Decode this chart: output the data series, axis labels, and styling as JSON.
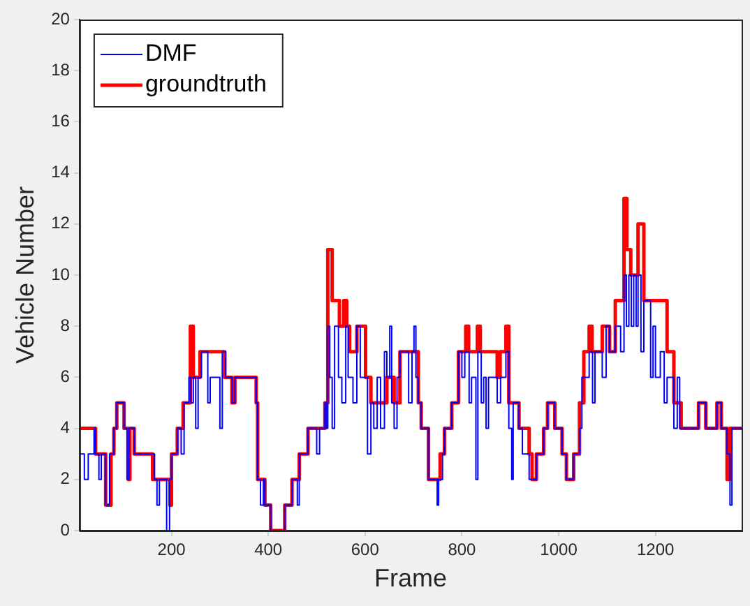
{
  "chart_data": {
    "type": "step",
    "xlabel": "Frame",
    "ylabel": "Vehicle Number",
    "xlim": [
      10,
      1378
    ],
    "xticks": [
      200,
      400,
      600,
      800,
      1000,
      1200
    ],
    "ylim": [
      0,
      20
    ],
    "yticks": [
      0,
      2,
      4,
      6,
      8,
      10,
      12,
      14,
      16,
      18,
      20
    ],
    "grid": false,
    "legend": "top left",
    "line_style": "solid",
    "marker": "none",
    "series": [
      {
        "name": "DMF",
        "color": "#0000ff",
        "x": [
          10,
          20,
          28,
          40,
          43,
          50,
          55,
          64,
          72,
          81,
          87,
          102,
          108,
          112,
          123,
          165,
          170,
          175,
          190,
          196,
          200,
          212,
          220,
          226,
          236,
          240,
          245,
          250,
          255,
          262,
          275,
          280,
          300,
          305,
          312,
          325,
          331,
          375,
          378,
          384,
          390,
          393,
          405,
          434,
          449,
          460,
          464,
          482,
          500,
          506,
          517,
          520,
          523,
          527,
          532,
          537,
          545,
          552,
          560,
          565,
          575,
          583,
          590,
          601,
          605,
          612,
          618,
          625,
          632,
          640,
          645,
          651,
          655,
          660,
          666,
          672,
          690,
          697,
          701,
          705,
          710,
          716,
          731,
          749,
          752,
          760,
          764,
          779,
          793,
          800,
          806,
          815,
          820,
          829,
          833,
          840,
          845,
          850,
          855,
          873,
          880,
          891,
          897,
          903,
          906,
          918,
          925,
          939,
          954,
          969,
          977,
          992,
          1007,
          1016,
          1031,
          1043,
          1048,
          1063,
          1070,
          1075,
          1090,
          1098,
          1105,
          1117,
          1128,
          1135,
          1140,
          1145,
          1150,
          1155,
          1160,
          1164,
          1170,
          1176,
          1190,
          1195,
          1200,
          1210,
          1218,
          1224,
          1238,
          1245,
          1250,
          1289,
          1304,
          1327,
          1336,
          1348,
          1354,
          1358,
          1378
        ],
        "values": [
          3,
          2,
          3,
          4,
          3,
          2,
          3,
          1,
          3,
          4,
          5,
          4,
          2,
          4,
          3,
          2,
          1,
          2,
          0,
          2,
          3,
          4,
          3,
          5,
          6,
          5,
          6,
          4,
          6,
          7,
          5,
          6,
          4,
          7,
          6,
          5,
          6,
          5,
          2,
          1,
          2,
          1,
          0,
          1,
          2,
          1,
          3,
          4,
          3,
          4,
          5,
          4,
          8,
          6,
          4,
          8,
          6,
          5,
          8,
          6,
          5,
          8,
          6,
          6,
          3,
          5,
          4,
          6,
          4,
          7,
          6,
          8,
          5,
          4,
          6,
          7,
          5,
          7,
          8,
          6,
          5,
          4,
          2,
          1,
          2,
          3,
          4,
          5,
          7,
          6,
          7,
          5,
          6,
          2,
          7,
          5,
          6,
          4,
          6,
          5,
          6,
          7,
          4,
          2,
          5,
          4,
          3,
          2,
          3,
          4,
          5,
          4,
          3,
          2,
          3,
          4,
          6,
          7,
          5,
          7,
          6,
          8,
          7,
          8,
          7,
          10,
          8,
          10,
          8,
          10,
          8,
          10,
          7,
          9,
          6,
          8,
          6,
          7,
          5,
          6,
          4,
          6,
          4,
          5,
          4,
          5,
          4,
          3,
          1,
          4,
          4
        ]
      },
      {
        "name": "groundtruth",
        "color": "#ff0000",
        "x": [
          10,
          43,
          64,
          75,
          81,
          87,
          102,
          111,
          114,
          123,
          161,
          197,
          200,
          212,
          224,
          239,
          245,
          259,
          310,
          325,
          331,
          375,
          378,
          393,
          405,
          434,
          449,
          464,
          482,
          517,
          523,
          532,
          547,
          556,
          562,
          568,
          583,
          601,
          612,
          645,
          660,
          672,
          710,
          716,
          731,
          755,
          764,
          779,
          793,
          808,
          814,
          832,
          838,
          873,
          879,
          891,
          897,
          918,
          939,
          945,
          954,
          969,
          977,
          992,
          1007,
          1016,
          1031,
          1043,
          1052,
          1063,
          1069,
          1090,
          1105,
          1117,
          1135,
          1141,
          1149,
          1164,
          1176,
          1224,
          1238,
          1253,
          1289,
          1304,
          1327,
          1336,
          1348,
          1354,
          1378
        ],
        "values": [
          4,
          3,
          1,
          3,
          4,
          5,
          4,
          2,
          4,
          3,
          2,
          1,
          3,
          4,
          5,
          8,
          6,
          7,
          6,
          5,
          6,
          5,
          2,
          1,
          0,
          1,
          2,
          3,
          4,
          5,
          11,
          9,
          8,
          9,
          8,
          7,
          8,
          6,
          5,
          6,
          5,
          7,
          5,
          4,
          2,
          3,
          4,
          5,
          7,
          8,
          7,
          8,
          7,
          6,
          7,
          8,
          5,
          4,
          3,
          2,
          3,
          4,
          5,
          4,
          3,
          2,
          3,
          5,
          7,
          8,
          7,
          8,
          7,
          9,
          13,
          11,
          10,
          12,
          9,
          7,
          5,
          4,
          5,
          4,
          5,
          4,
          2,
          4,
          4
        ]
      }
    ]
  }
}
